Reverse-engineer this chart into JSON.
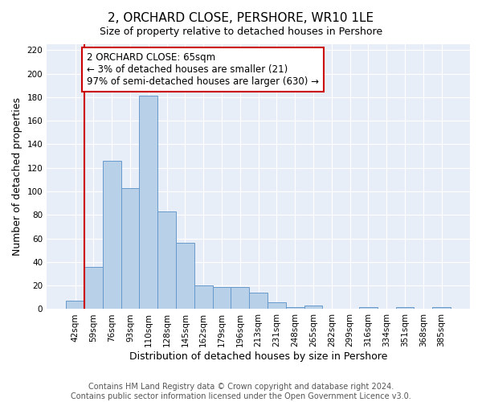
{
  "title": "2, ORCHARD CLOSE, PERSHORE, WR10 1LE",
  "subtitle": "Size of property relative to detached houses in Pershore",
  "xlabel": "Distribution of detached houses by size in Pershore",
  "ylabel": "Number of detached properties",
  "bar_labels": [
    "42sqm",
    "59sqm",
    "76sqm",
    "93sqm",
    "110sqm",
    "128sqm",
    "145sqm",
    "162sqm",
    "179sqm",
    "196sqm",
    "213sqm",
    "231sqm",
    "248sqm",
    "265sqm",
    "282sqm",
    "299sqm",
    "316sqm",
    "334sqm",
    "351sqm",
    "368sqm",
    "385sqm"
  ],
  "bar_values": [
    7,
    36,
    126,
    103,
    181,
    83,
    56,
    20,
    19,
    19,
    14,
    6,
    2,
    3,
    0,
    0,
    2,
    0,
    2,
    0,
    2
  ],
  "bar_color": "#b8d0e8",
  "bar_edge_color": "#6699cc",
  "vline_x": 0.5,
  "vline_color": "#cc0000",
  "annotation_text": "2 ORCHARD CLOSE: 65sqm\n← 3% of detached houses are smaller (21)\n97% of semi-detached houses are larger (630) →",
  "annotation_box_color": "white",
  "annotation_box_edge_color": "#cc0000",
  "ylim": [
    0,
    225
  ],
  "yticks": [
    0,
    20,
    40,
    60,
    80,
    100,
    120,
    140,
    160,
    180,
    200,
    220
  ],
  "background_color": "#e8eef8",
  "grid_color": "white",
  "footer_text": "Contains HM Land Registry data © Crown copyright and database right 2024.\nContains public sector information licensed under the Open Government Licence v3.0.",
  "title_fontsize": 11,
  "xlabel_fontsize": 9,
  "ylabel_fontsize": 9,
  "tick_fontsize": 7.5,
  "annotation_fontsize": 8.5,
  "footer_fontsize": 7
}
